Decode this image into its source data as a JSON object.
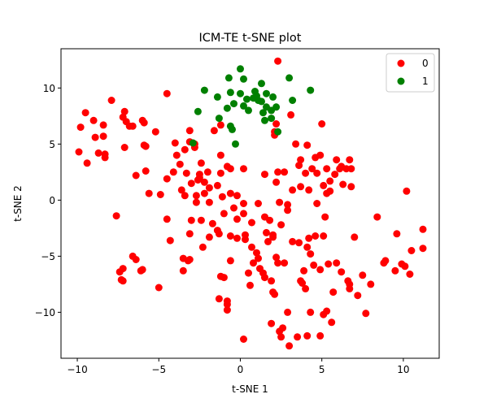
{
  "chart_data": {
    "type": "scatter",
    "title": "ICM-TE t-SNE plot",
    "xlabel": "t-SNE 1",
    "ylabel": "t-SNE 2",
    "xlim": [
      -11.0,
      12.2
    ],
    "ylim": [
      -14.1,
      13.5
    ],
    "xticks": [
      -10,
      -5,
      0,
      5,
      10
    ],
    "yticks": [
      -10,
      -5,
      0,
      5,
      10
    ],
    "grid": false,
    "legend_position": "top-right",
    "series": [
      {
        "name": "0",
        "color": "#ff0000",
        "points": [
          [
            -9.5,
            7.8
          ],
          [
            -9.8,
            6.5
          ],
          [
            -9.0,
            7.1
          ],
          [
            -8.4,
            6.7
          ],
          [
            -8.9,
            5.6
          ],
          [
            -8.4,
            5.7
          ],
          [
            -9.9,
            4.3
          ],
          [
            -8.7,
            4.2
          ],
          [
            -8.3,
            4.1
          ],
          [
            -8.3,
            3.8
          ],
          [
            -9.4,
            3.3
          ],
          [
            -7.9,
            8.9
          ],
          [
            -7.1,
            7.9
          ],
          [
            -7.2,
            7.4
          ],
          [
            -7.0,
            7.0
          ],
          [
            -6.8,
            6.6
          ],
          [
            -6.6,
            6.6
          ],
          [
            -7.1,
            4.7
          ],
          [
            -6.0,
            7.1
          ],
          [
            -5.9,
            6.9
          ],
          [
            -5.2,
            6.1
          ],
          [
            -5.9,
            4.9
          ],
          [
            -5.8,
            4.8
          ],
          [
            -6.4,
            2.2
          ],
          [
            -5.8,
            2.6
          ],
          [
            -5.6,
            0.6
          ],
          [
            -4.9,
            0.5
          ],
          [
            -4.5,
            9.5
          ],
          [
            -4.0,
            5.1
          ],
          [
            -3.9,
            4.0
          ],
          [
            -3.7,
            3.2
          ],
          [
            -3.4,
            4.5
          ],
          [
            -3.1,
            6.2
          ],
          [
            -3.1,
            5.2
          ],
          [
            -2.8,
            5.0
          ],
          [
            -2.8,
            4.7
          ],
          [
            -4.5,
            1.9
          ],
          [
            -4.1,
            2.5
          ],
          [
            -3.6,
            0.9
          ],
          [
            -3.4,
            0.4
          ],
          [
            -3.3,
            2.4
          ],
          [
            -3.0,
            1.5
          ],
          [
            -2.6,
            1.8
          ],
          [
            -2.5,
            2.0
          ],
          [
            -2.5,
            2.3
          ],
          [
            -2.7,
            0.4
          ],
          [
            -2.4,
            3.3
          ],
          [
            -2.2,
            1.6
          ],
          [
            -2.0,
            2.5
          ],
          [
            -1.9,
            1.1
          ],
          [
            -2.2,
            0.6
          ],
          [
            -1.9,
            -0.2
          ],
          [
            -1.6,
            6.2
          ],
          [
            -1.2,
            6.7
          ],
          [
            -1.2,
            4.0
          ],
          [
            -1.2,
            2.4
          ],
          [
            -1.4,
            1.3
          ],
          [
            -1.1,
            0.3
          ],
          [
            -0.8,
            3.0
          ],
          [
            -0.6,
            2.8
          ],
          [
            -0.6,
            0.6
          ],
          [
            -0.4,
            -0.7
          ],
          [
            -1.0,
            -1.2
          ],
          [
            -0.2,
            0.4
          ],
          [
            -0.2,
            -1.7
          ],
          [
            0.2,
            -1.2
          ],
          [
            0.3,
            -3.1
          ],
          [
            0.2,
            -0.3
          ],
          [
            0.2,
            2.8
          ],
          [
            -7.6,
            -1.4
          ],
          [
            -7.4,
            -6.4
          ],
          [
            -7.2,
            -6.1
          ],
          [
            -7.3,
            -7.1
          ],
          [
            -7.2,
            -7.2
          ],
          [
            -6.6,
            -5.0
          ],
          [
            -6.4,
            -5.3
          ],
          [
            -6.1,
            -6.3
          ],
          [
            -6.0,
            -6.2
          ],
          [
            -5.0,
            -7.8
          ],
          [
            -4.5,
            -1.7
          ],
          [
            -4.3,
            -3.6
          ],
          [
            -3.5,
            -5.2
          ],
          [
            -3.5,
            -6.3
          ],
          [
            -3.2,
            -5.4
          ],
          [
            -3.1,
            -5.3
          ],
          [
            -3.1,
            -3.0
          ],
          [
            -3.0,
            -1.8
          ],
          [
            -2.7,
            -0.2
          ],
          [
            -2.4,
            -1.8
          ],
          [
            -2.3,
            -4.2
          ],
          [
            -1.9,
            -3.3
          ],
          [
            -1.7,
            -2.1
          ],
          [
            -1.4,
            -2.7
          ],
          [
            -1.3,
            -3.0
          ],
          [
            -1.2,
            -6.8
          ],
          [
            -1.0,
            -6.9
          ],
          [
            -0.8,
            -9.0
          ],
          [
            -0.8,
            -9.3
          ],
          [
            -0.8,
            -9.8
          ],
          [
            -1.3,
            -8.8
          ],
          [
            -0.6,
            -5.4
          ],
          [
            -0.6,
            -3.2
          ],
          [
            -0.2,
            -3.4
          ],
          [
            0.2,
            -12.4
          ],
          [
            0.3,
            -3.5
          ],
          [
            0.5,
            -6.5
          ],
          [
            0.6,
            -7.6
          ],
          [
            0.7,
            -4.2
          ],
          [
            0.8,
            -5.6
          ],
          [
            0.7,
            -2.0
          ],
          [
            1.0,
            -4.7
          ],
          [
            1.1,
            -5.2
          ],
          [
            1.1,
            -0.3
          ],
          [
            1.2,
            -6.1
          ],
          [
            1.4,
            -6.5
          ],
          [
            1.5,
            -6.9
          ],
          [
            1.5,
            -1.5
          ],
          [
            1.6,
            -2.9
          ],
          [
            1.7,
            -3.7
          ],
          [
            1.8,
            -1.8
          ],
          [
            1.9,
            -7.2
          ],
          [
            1.9,
            -11.0
          ],
          [
            2.0,
            -3.1
          ],
          [
            2.0,
            -3.3
          ],
          [
            2.0,
            -8.2
          ],
          [
            2.1,
            -8.4
          ],
          [
            2.2,
            -5.1
          ],
          [
            2.3,
            -5.6
          ],
          [
            2.4,
            -11.7
          ],
          [
            2.5,
            -12.2
          ],
          [
            2.6,
            -11.4
          ],
          [
            2.5,
            -2.2
          ],
          [
            2.7,
            -5.6
          ],
          [
            2.9,
            -0.9
          ],
          [
            2.9,
            -10.0
          ],
          [
            3.0,
            -13.0
          ],
          [
            3.2,
            -3.7
          ],
          [
            3.5,
            -12.2
          ],
          [
            3.6,
            -3.8
          ],
          [
            3.7,
            -7.2
          ],
          [
            3.8,
            -7.4
          ],
          [
            3.9,
            -6.3
          ],
          [
            4.0,
            -7.9
          ],
          [
            4.1,
            -12.1
          ],
          [
            4.2,
            -3.4
          ],
          [
            4.1,
            -4.2
          ],
          [
            4.3,
            -4.8
          ],
          [
            4.3,
            -10.0
          ],
          [
            4.5,
            -5.8
          ],
          [
            4.6,
            -3.2
          ],
          [
            4.9,
            -12.1
          ],
          [
            4.9,
            -6.2
          ],
          [
            5.1,
            -3.2
          ],
          [
            5.1,
            -10.2
          ],
          [
            5.3,
            -9.9
          ],
          [
            5.4,
            -5.7
          ],
          [
            5.6,
            -10.9
          ],
          [
            5.7,
            -8.2
          ],
          [
            5.9,
            -5.6
          ],
          [
            6.2,
            -6.4
          ],
          [
            6.6,
            -7.2
          ],
          [
            6.7,
            -7.5
          ],
          [
            6.7,
            -7.9
          ],
          [
            7.0,
            -3.3
          ],
          [
            7.2,
            -8.5
          ],
          [
            7.5,
            -6.7
          ],
          [
            7.7,
            -10.1
          ],
          [
            8.0,
            -7.5
          ],
          [
            8.4,
            -1.5
          ],
          [
            8.8,
            -5.6
          ],
          [
            8.9,
            -5.4
          ],
          [
            9.5,
            -6.3
          ],
          [
            9.6,
            -3.0
          ],
          [
            9.9,
            -5.7
          ],
          [
            10.1,
            -5.9
          ],
          [
            10.4,
            -6.6
          ],
          [
            10.5,
            -4.5
          ],
          [
            11.2,
            -2.6
          ],
          [
            11.2,
            -4.3
          ],
          [
            10.2,
            0.8
          ],
          [
            2.3,
            12.4
          ],
          [
            2.2,
            6.8
          ],
          [
            2.1,
            6.1
          ],
          [
            2.1,
            5.8
          ],
          [
            3.1,
            7.6
          ],
          [
            3.4,
            5.0
          ],
          [
            3.7,
            3.6
          ],
          [
            3.6,
            3.1
          ],
          [
            4.1,
            4.9
          ],
          [
            4.6,
            3.8
          ],
          [
            4.7,
            2.4
          ],
          [
            4.9,
            4.0
          ],
          [
            5.0,
            6.8
          ],
          [
            5.3,
            2.8
          ],
          [
            5.5,
            1.7
          ],
          [
            5.5,
            0.8
          ],
          [
            5.8,
            2.3
          ],
          [
            5.9,
            3.6
          ],
          [
            6.1,
            2.8
          ],
          [
            6.2,
            3.0
          ],
          [
            6.3,
            1.4
          ],
          [
            6.5,
            2.8
          ],
          [
            6.7,
            3.6
          ],
          [
            6.8,
            2.8
          ],
          [
            6.8,
            1.2
          ],
          [
            1.5,
            2.3
          ],
          [
            2.2,
            1.6
          ],
          [
            2.3,
            2.5
          ],
          [
            2.7,
            2.5
          ],
          [
            3.2,
            0.9
          ],
          [
            3.7,
            1.2
          ],
          [
            4.0,
            2.4
          ],
          [
            4.2,
            0.9
          ],
          [
            4.4,
            2.8
          ],
          [
            4.7,
            -0.3
          ],
          [
            5.1,
            1.3
          ],
          [
            5.3,
            0.6
          ],
          [
            5.2,
            -1.5
          ],
          [
            2.9,
            -0.4
          ],
          [
            2.4,
            -0.2
          ]
        ]
      },
      {
        "name": "1",
        "color": "#008000",
        "points": [
          [
            0.0,
            11.7
          ],
          [
            -0.7,
            10.9
          ],
          [
            0.2,
            10.8
          ],
          [
            1.3,
            10.4
          ],
          [
            3.0,
            10.9
          ],
          [
            4.3,
            9.8
          ],
          [
            -2.2,
            9.8
          ],
          [
            -0.6,
            9.6
          ],
          [
            0.0,
            9.5
          ],
          [
            0.9,
            9.7
          ],
          [
            1.6,
            9.5
          ],
          [
            -1.4,
            9.2
          ],
          [
            0.4,
            9.0
          ],
          [
            0.8,
            9.1
          ],
          [
            1.0,
            9.3
          ],
          [
            1.1,
            8.9
          ],
          [
            1.3,
            8.8
          ],
          [
            2.0,
            9.2
          ],
          [
            -0.4,
            8.6
          ],
          [
            0.2,
            8.4
          ],
          [
            1.6,
            8.3
          ],
          [
            1.9,
            8.0
          ],
          [
            2.2,
            8.3
          ],
          [
            -2.6,
            7.9
          ],
          [
            -0.8,
            8.2
          ],
          [
            0.5,
            8.0
          ],
          [
            1.4,
            7.8
          ],
          [
            1.5,
            7.1
          ],
          [
            1.9,
            7.3
          ],
          [
            3.2,
            8.9
          ],
          [
            -1.3,
            7.3
          ],
          [
            -0.6,
            6.6
          ],
          [
            -0.5,
            6.3
          ],
          [
            2.3,
            6.1
          ],
          [
            -0.3,
            5.0
          ],
          [
            -2.9,
            5.1
          ]
        ]
      }
    ]
  }
}
